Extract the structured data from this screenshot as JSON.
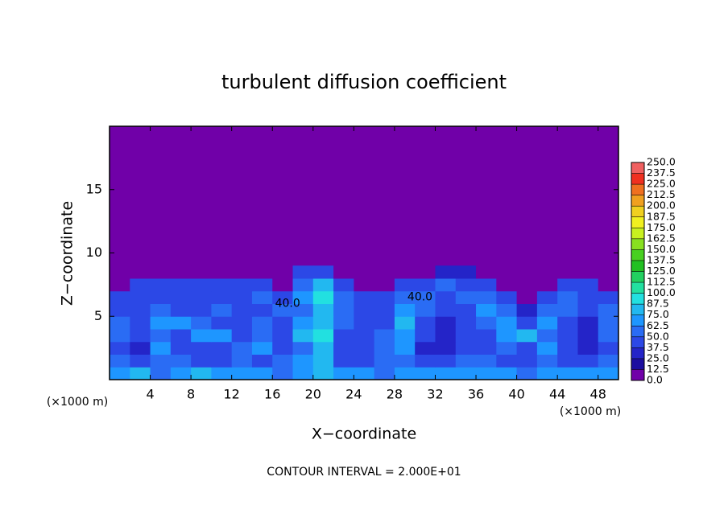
{
  "chart_data": {
    "type": "heatmap",
    "title": "turbulent diffusion coefficient",
    "xlabel": "X−coordinate",
    "ylabel": "Z−coordinate",
    "x_unit_left": "(×1000 m)",
    "x_unit_right": "(×1000 m)",
    "note": "CONTOUR INTERVAL = 2.000E+01",
    "xlim": [
      0,
      50
    ],
    "ylim": [
      0,
      20
    ],
    "xticks": [
      4,
      8,
      12,
      16,
      20,
      24,
      28,
      32,
      36,
      40,
      44,
      48
    ],
    "yticks": [
      5,
      10,
      15
    ],
    "x": [
      1,
      3,
      5,
      7,
      9,
      11,
      13,
      15,
      17,
      19,
      21,
      23,
      25,
      27,
      29,
      31,
      33,
      35,
      37,
      39,
      41,
      43,
      45,
      47,
      49
    ],
    "y": [
      0.5,
      1.5,
      2.5,
      3.5,
      4.5,
      5.5,
      6.5,
      7.5,
      8.5
    ],
    "background": 0,
    "values": [
      [
        70,
        75,
        60,
        70,
        75,
        70,
        70,
        65,
        60,
        70,
        80,
        70,
        65,
        60,
        70,
        70,
        65,
        70,
        70,
        65,
        60,
        70,
        70,
        65,
        70
      ],
      [
        50,
        45,
        60,
        50,
        45,
        40,
        50,
        45,
        55,
        65,
        75,
        45,
        40,
        50,
        55,
        45,
        40,
        50,
        60,
        45,
        40,
        60,
        45,
        40,
        50
      ],
      [
        45,
        35,
        70,
        40,
        40,
        45,
        60,
        70,
        45,
        60,
        85,
        40,
        45,
        50,
        70,
        35,
        35,
        45,
        40,
        60,
        45,
        70,
        40,
        35,
        45
      ],
      [
        50,
        40,
        60,
        40,
        70,
        65,
        40,
        60,
        45,
        80,
        90,
        45,
        40,
        50,
        70,
        40,
        35,
        40,
        45,
        70,
        80,
        60,
        40,
        35,
        50
      ],
      [
        60,
        45,
        70,
        70,
        60,
        45,
        40,
        50,
        45,
        70,
        85,
        50,
        45,
        40,
        75,
        40,
        35,
        40,
        60,
        70,
        45,
        70,
        40,
        35,
        60
      ],
      [
        45,
        40,
        60,
        40,
        45,
        50,
        40,
        45,
        50,
        60,
        80,
        55,
        45,
        45,
        70,
        55,
        40,
        40,
        70,
        50,
        30,
        60,
        50,
        40,
        60
      ],
      [
        40,
        45,
        40,
        45,
        45,
        40,
        40,
        50,
        40,
        70,
        90,
        50,
        40,
        40,
        50,
        60,
        45,
        50,
        60,
        45,
        0,
        40,
        50,
        45,
        40
      ],
      [
        0,
        40,
        40,
        40,
        40,
        40,
        40,
        40,
        0,
        60,
        80,
        40,
        0,
        0,
        40,
        45,
        50,
        45,
        40,
        0,
        0,
        0,
        40,
        40,
        0
      ],
      [
        0,
        0,
        0,
        0,
        0,
        0,
        0,
        0,
        0,
        40,
        40,
        0,
        0,
        0,
        0,
        0,
        30,
        30,
        0,
        0,
        0,
        0,
        0,
        0,
        0
      ]
    ],
    "contour_labels": [
      {
        "x": 17.5,
        "y": 6,
        "value": 40,
        "label": "40.0"
      },
      {
        "x": 30.5,
        "y": 6.5,
        "value": 40,
        "label": "40.0"
      }
    ],
    "colorbar": {
      "ticks": [
        {
          "value": 0,
          "label": "0.0"
        },
        {
          "value": 12.5,
          "label": "12.5"
        },
        {
          "value": 25,
          "label": "25.0"
        },
        {
          "value": 37.5,
          "label": "37.5"
        },
        {
          "value": 50,
          "label": "50.0"
        },
        {
          "value": 62.5,
          "label": "62.5"
        },
        {
          "value": 75,
          "label": "75.0"
        },
        {
          "value": 87.5,
          "label": "87.5"
        },
        {
          "value": 100,
          "label": "100.0"
        },
        {
          "value": 112.5,
          "label": "112.5"
        },
        {
          "value": 125,
          "label": "125.0"
        },
        {
          "value": 137.5,
          "label": "137.5"
        },
        {
          "value": 150,
          "label": "150.0"
        },
        {
          "value": 162.5,
          "label": "162.5"
        },
        {
          "value": 175,
          "label": "175.0"
        },
        {
          "value": 187.5,
          "label": "187.5"
        },
        {
          "value": 200,
          "label": "200.0"
        },
        {
          "value": 212.5,
          "label": "212.5"
        },
        {
          "value": 225,
          "label": "225.0"
        },
        {
          "value": 237.5,
          "label": "237.5"
        },
        {
          "value": 250,
          "label": "250.0"
        }
      ],
      "colors": [
        "#7000a8",
        "#1c0ea0",
        "#2424c8",
        "#2c48e6",
        "#2a6cf4",
        "#1e96ff",
        "#22b8f0",
        "#22e0e0",
        "#22e0a0",
        "#22d060",
        "#22c022",
        "#48d020",
        "#88e020",
        "#c8f020",
        "#f0f020",
        "#f0d020",
        "#f0a020",
        "#f07020",
        "#f03020",
        "#f06060"
      ]
    }
  }
}
